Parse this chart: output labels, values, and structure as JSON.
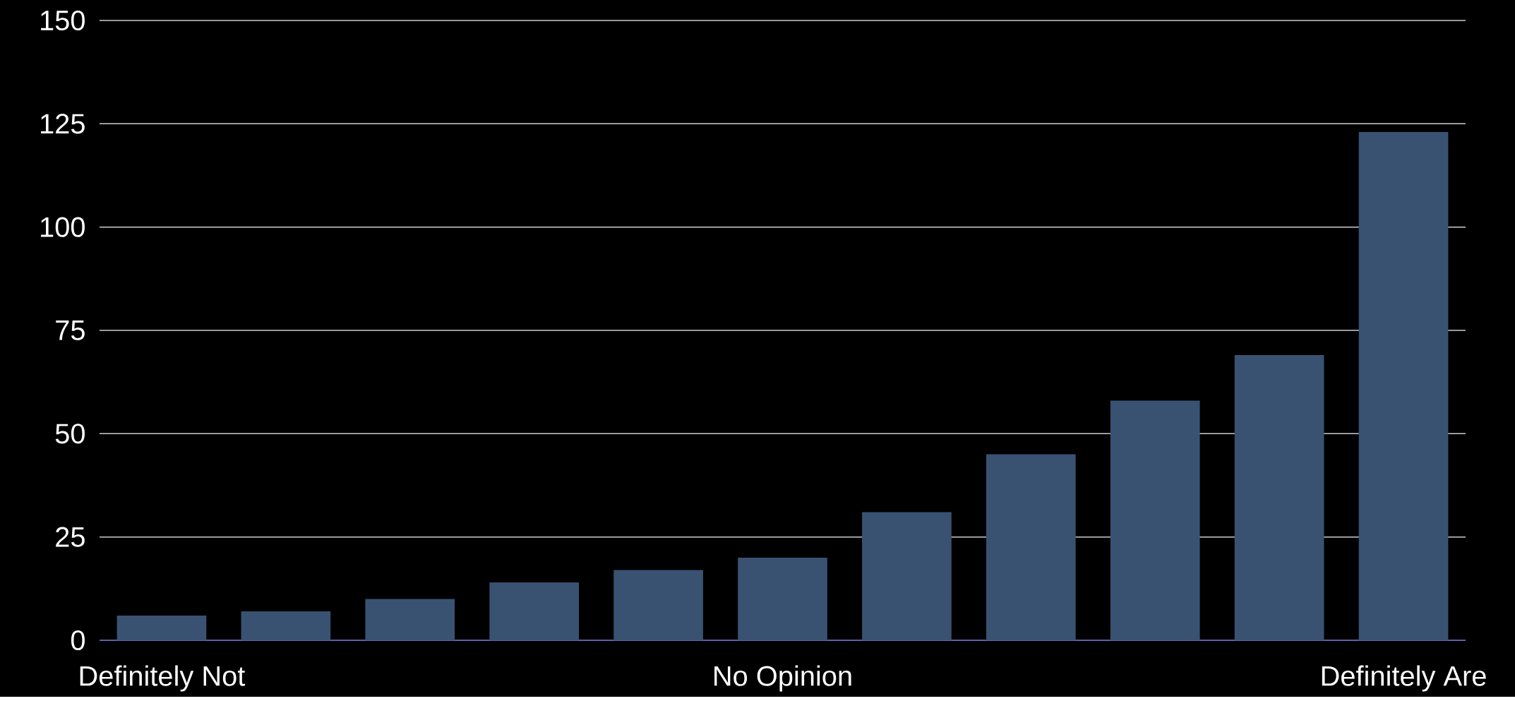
{
  "chart_data": {
    "type": "bar",
    "categories": [
      "Definitely Not",
      null,
      null,
      null,
      null,
      "No Opinion",
      null,
      null,
      null,
      null,
      "Definitely Are"
    ],
    "values": [
      6,
      7,
      10,
      14,
      17,
      20,
      31,
      45,
      58,
      69,
      123
    ],
    "color": "#3a5272",
    "ylim": [
      0,
      150
    ],
    "yticks": [
      0,
      25,
      50,
      75,
      100,
      125,
      150
    ],
    "grid": "y"
  }
}
